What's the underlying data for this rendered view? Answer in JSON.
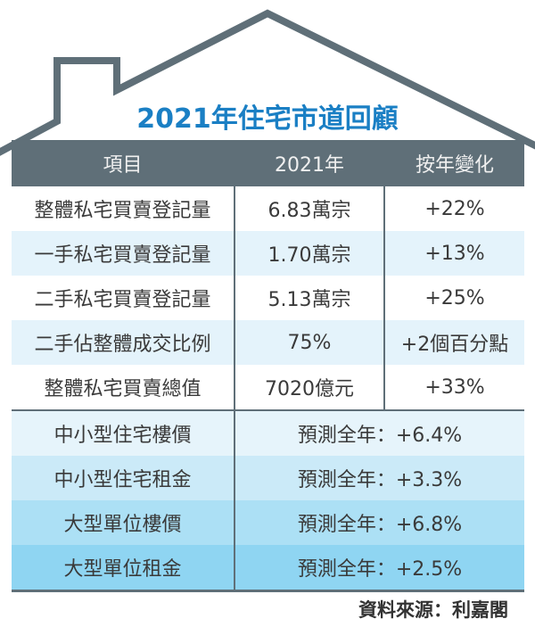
{
  "title": "2021年住宅市道回顧",
  "colors": {
    "roof": "#5f6f78",
    "title": "#1a7fc4",
    "header_bg": "#5f6f78",
    "forecast_rows": [
      "#e6f4fb",
      "#cbeaf8",
      "#ace0f5",
      "#8fd5f2"
    ]
  },
  "table": {
    "headers": [
      "項目",
      "2021年",
      "按年變化"
    ],
    "rows": [
      [
        "整體私宅買賣登記量",
        "6.83萬宗",
        "+22%"
      ],
      [
        "一手私宅買賣登記量",
        "1.70萬宗",
        "+13%"
      ],
      [
        "二手私宅買賣登記量",
        "5.13萬宗",
        "+25%"
      ],
      [
        "二手佔整體成交比例",
        "75%",
        "+2個百分點"
      ],
      [
        "整體私宅買賣總值",
        "7020億元",
        "+33%"
      ]
    ],
    "forecast_rows": [
      [
        "中小型住宅樓價",
        "預測全年：+6.4%"
      ],
      [
        "中小型住宅租金",
        "預測全年：+3.3%"
      ],
      [
        "大型單位樓價",
        "預測全年：+6.8%"
      ],
      [
        "大型單位租金",
        "預測全年：+2.5%"
      ]
    ]
  },
  "source": "資料來源：利嘉閣"
}
